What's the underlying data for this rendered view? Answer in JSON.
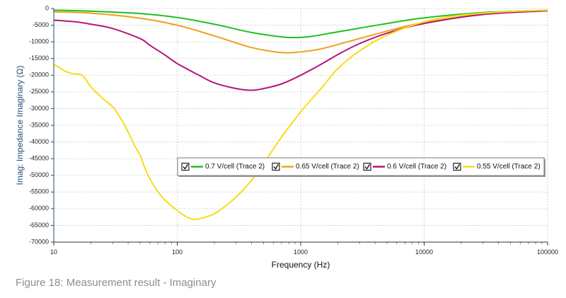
{
  "chart_data": {
    "type": "line",
    "xlabel": "Frequency (Hz)",
    "ylabel": "Imag: Impedance Imaginary (Ω)",
    "x_scale": "log",
    "xlim": [
      10,
      100000
    ],
    "ylim": [
      -70000,
      0
    ],
    "y_ticks": [
      "0",
      "-5000",
      "-10000",
      "-15000",
      "-20000",
      "-25000",
      "-30000",
      "-35000",
      "-40000",
      "-45000",
      "-50000",
      "-55000",
      "-60000",
      "-65000",
      "-70000"
    ],
    "x_ticks": [
      "10",
      "100",
      "1000",
      "10000",
      "100000"
    ],
    "grid": true,
    "legend_position": "center-right",
    "series": [
      {
        "name": "0.7 V/cell (Trace 2)",
        "color": "#1fc01f",
        "x": [
          10,
          20,
          50,
          100,
          200,
          400,
          700,
          900,
          1200,
          2000,
          5000,
          10000,
          30000,
          100000
        ],
        "y": [
          -500,
          -800,
          -1500,
          -2700,
          -4700,
          -7200,
          -8500,
          -8700,
          -8400,
          -7000,
          -4500,
          -2800,
          -1200,
          -500
        ]
      },
      {
        "name": "0.65 V/cell (Trace 2)",
        "color": "#f0a020",
        "x": [
          10,
          20,
          50,
          100,
          200,
          400,
          700,
          1000,
          1500,
          3000,
          6000,
          10000,
          30000,
          100000
        ],
        "y": [
          -1000,
          -1400,
          -2900,
          -5000,
          -8200,
          -11700,
          -13200,
          -13000,
          -12000,
          -9000,
          -6000,
          -4200,
          -1700,
          -600
        ]
      },
      {
        "name": "0.6 V/cell (Trace 2)",
        "color": "#b5167a",
        "x": [
          10,
          15,
          20,
          30,
          50,
          60,
          80,
          100,
          150,
          200,
          300,
          400,
          500,
          700,
          1000,
          1500,
          2000,
          3000,
          5000,
          10000,
          30000,
          100000
        ],
        "y": [
          -3500,
          -4000,
          -4700,
          -6000,
          -9000,
          -11000,
          -14000,
          -16500,
          -20000,
          -22300,
          -24000,
          -24500,
          -24000,
          -22600,
          -20000,
          -16500,
          -13800,
          -10500,
          -7400,
          -4500,
          -1800,
          -700
        ]
      },
      {
        "name": "0.55 V/cell (Trace 2)",
        "color": "#f5dd18",
        "x": [
          10,
          12,
          14,
          17,
          20,
          25,
          30,
          35,
          40,
          45,
          50,
          55,
          60,
          70,
          80,
          100,
          120,
          140,
          170,
          200,
          250,
          300,
          400,
          500,
          700,
          1000,
          1500,
          2000,
          3000,
          5000,
          10000,
          20000,
          50000,
          100000
        ],
        "y": [
          -16700,
          -18500,
          -19500,
          -20000,
          -23500,
          -27000,
          -29500,
          -33000,
          -37000,
          -41000,
          -44000,
          -48000,
          -51000,
          -55000,
          -57500,
          -60500,
          -62500,
          -63200,
          -62500,
          -61500,
          -59000,
          -56500,
          -51500,
          -46500,
          -38500,
          -31000,
          -23500,
          -18000,
          -12700,
          -8000,
          -4000,
          -2000,
          -900,
          -500
        ]
      }
    ]
  },
  "caption": "Figure 18: Measurement result - Imaginary"
}
